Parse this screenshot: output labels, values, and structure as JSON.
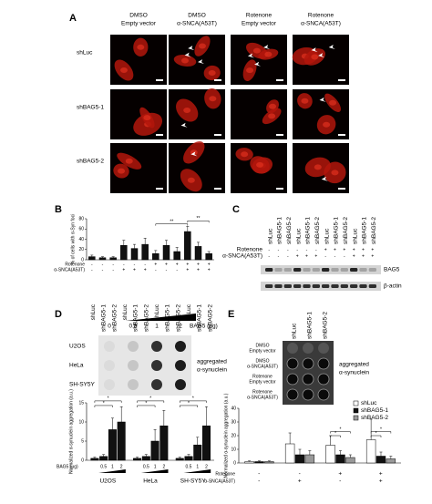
{
  "panel_a": {
    "label": "A",
    "columns": [
      [
        "DMSO",
        "Empty vector"
      ],
      [
        "DMSO",
        "α-SNCA(A53T)"
      ],
      [
        "Rotenone",
        "Empty vector"
      ],
      [
        "Rotenone",
        "α-SNCA(A53T)"
      ]
    ],
    "rows": [
      "shLuc",
      "shBAG5-1",
      "shBAG5-2"
    ]
  },
  "panel_b": {
    "label": "B",
    "chart_data": {
      "type": "bar",
      "y_label": "% of cells with α-Syn foci",
      "categories": [
        "shLuc",
        "shBAG5-1",
        "shBAG5-2",
        "shLuc",
        "shBAG5-1",
        "shBAG5-2",
        "shLuc",
        "shBAG5-1",
        "shBAG5-2",
        "shLuc",
        "shBAG5-1",
        "shBAG5-2"
      ],
      "values": [
        6,
        4,
        4,
        28,
        22,
        30,
        12,
        28,
        16,
        55,
        26,
        12
      ],
      "errors": [
        3,
        2,
        2,
        10,
        8,
        12,
        6,
        10,
        8,
        10,
        8,
        4
      ],
      "color": "#111111",
      "ylim": [
        0,
        80
      ],
      "yticks": [
        0,
        20,
        40,
        60,
        80
      ],
      "rows": [
        {
          "name": "Rotenone",
          "signs": [
            "-",
            "-",
            "-",
            "-",
            "-",
            "-",
            "+",
            "+",
            "+",
            "+",
            "+",
            "+"
          ]
        },
        {
          "name": "α-SNCA(A53T)",
          "signs": [
            "-",
            "-",
            "-",
            "+",
            "+",
            "+",
            "-",
            "-",
            "-",
            "+",
            "+",
            "+"
          ]
        }
      ],
      "annotations": [
        "**",
        "**"
      ]
    }
  },
  "panel_c": {
    "label": "C",
    "columns": [
      "shLuc",
      "shBAG5-1",
      "shBAG5-2",
      "shLuc",
      "shBAG5-1",
      "shBAG5-2",
      "shLuc",
      "shBAG5-1",
      "shBAG5-2",
      "shLuc",
      "shBAG5-1",
      "shBAG5-2"
    ],
    "rows": [
      {
        "name": "Rotenone",
        "signs": [
          "-",
          "-",
          "-",
          "-",
          "-",
          "-",
          "+",
          "+",
          "+",
          "+",
          "+",
          "+"
        ]
      },
      {
        "name": "α-SNCA(A53T)",
        "signs": [
          "-",
          "-",
          "-",
          "+",
          "+",
          "+",
          "-",
          "-",
          "-",
          "+",
          "+",
          "+"
        ]
      }
    ],
    "bands": [
      "BAG5",
      "β-actin"
    ]
  },
  "panel_d": {
    "label": "D",
    "doses": [
      "0",
      "0.5",
      "1",
      "2"
    ],
    "dose_label": "BAG5 (μg)",
    "cell_lines": [
      "U2OS",
      "HeLa",
      "SH-SY5Y"
    ],
    "blot_label": [
      "aggregated",
      "α-synuclein"
    ],
    "chart_data": {
      "type": "bar",
      "y_label": "Normalized α-synuclein aggregation (a.u.)",
      "x_label": "BAG5 (μg)",
      "x_ticks": [
        null,
        "0.5",
        "1",
        "2"
      ],
      "color": "#111111",
      "ylim": [
        0,
        15
      ],
      "yticks": [
        0,
        5,
        10,
        15
      ],
      "groups": [
        {
          "name": "U2OS",
          "values": [
            0.5,
            1,
            8,
            10
          ],
          "errors": [
            0.3,
            0.5,
            3,
            4
          ]
        },
        {
          "name": "HeLa",
          "values": [
            0.5,
            1,
            5,
            9
          ],
          "errors": [
            0.3,
            0.5,
            3,
            4
          ]
        },
        {
          "name": "SH-SY5Y",
          "values": [
            0.5,
            1,
            4,
            9
          ],
          "errors": [
            0.3,
            0.5,
            2,
            5
          ]
        }
      ],
      "annotations": [
        "*",
        "*",
        "*",
        "*",
        "*",
        "*"
      ]
    }
  },
  "panel_e": {
    "label": "E",
    "lanes": [
      "shLuc",
      "shBAG5-1",
      "shBAG5-2"
    ],
    "conditions": [
      [
        "DMSO",
        "Empty vector"
      ],
      [
        "DMSO",
        "α-SNCA(A53T)"
      ],
      [
        "Rotenone",
        "Empty vector"
      ],
      [
        "Rotenone",
        "α-SNCA(A53T)"
      ]
    ],
    "blot_label": [
      "aggregated",
      "α-synuclein"
    ],
    "chart_data": {
      "type": "bar",
      "y_label": "Normalized α-synuclein aggregation (a.u.)",
      "ylim": [
        0,
        40
      ],
      "yticks": [
        0,
        10,
        20,
        30,
        40
      ],
      "series": [
        {
          "name": "shLuc",
          "color": "#ffffff",
          "values": [
            1,
            14,
            13,
            17
          ],
          "errors": [
            0.5,
            8,
            7,
            15
          ]
        },
        {
          "name": "shBAG5-1",
          "color": "#111111",
          "values": [
            1,
            6,
            6,
            5
          ],
          "errors": [
            0.5,
            4,
            3,
            3
          ]
        },
        {
          "name": "shBAG5-2",
          "color": "#999999",
          "values": [
            1,
            6,
            4,
            3
          ],
          "errors": [
            0.5,
            3,
            2,
            2
          ]
        }
      ],
      "rows": [
        {
          "name": "Rotenone",
          "signs": [
            "-",
            "-",
            "+",
            "+"
          ]
        },
        {
          "name": "α-SNCA(A53T)",
          "signs": [
            "-",
            "+",
            "-",
            "+"
          ]
        }
      ],
      "annotations": [
        "*",
        "*",
        "*",
        "*"
      ]
    }
  }
}
